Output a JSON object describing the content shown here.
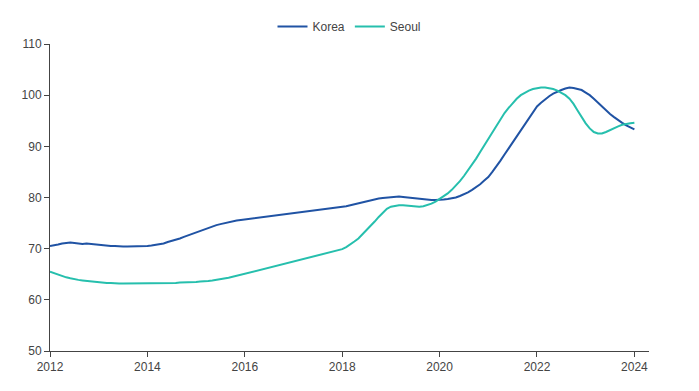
{
  "chart_data": {
    "type": "line",
    "x": [
      2012.0,
      2012.083,
      2012.167,
      2012.25,
      2012.333,
      2012.417,
      2012.5,
      2012.583,
      2012.667,
      2012.75,
      2012.833,
      2012.917,
      2013.0,
      2013.083,
      2013.167,
      2013.25,
      2013.333,
      2013.417,
      2013.5,
      2013.583,
      2013.667,
      2013.75,
      2013.833,
      2013.917,
      2014.0,
      2014.083,
      2014.167,
      2014.25,
      2014.333,
      2014.417,
      2014.5,
      2014.583,
      2014.667,
      2014.75,
      2014.833,
      2014.917,
      2015.0,
      2015.083,
      2015.167,
      2015.25,
      2015.333,
      2015.417,
      2015.5,
      2015.583,
      2015.667,
      2015.75,
      2015.833,
      2015.917,
      2016.0,
      2016.083,
      2016.167,
      2016.25,
      2016.333,
      2016.417,
      2016.5,
      2016.583,
      2016.667,
      2016.75,
      2016.833,
      2016.917,
      2017.0,
      2017.083,
      2017.167,
      2017.25,
      2017.333,
      2017.417,
      2017.5,
      2017.583,
      2017.667,
      2017.75,
      2017.833,
      2017.917,
      2018.0,
      2018.083,
      2018.167,
      2018.25,
      2018.333,
      2018.417,
      2018.5,
      2018.583,
      2018.667,
      2018.75,
      2018.833,
      2018.917,
      2019.0,
      2019.083,
      2019.167,
      2019.25,
      2019.333,
      2019.417,
      2019.5,
      2019.583,
      2019.667,
      2019.75,
      2019.833,
      2019.917,
      2020.0,
      2020.083,
      2020.167,
      2020.25,
      2020.333,
      2020.417,
      2020.5,
      2020.583,
      2020.667,
      2020.75,
      2020.833,
      2020.917,
      2021.0,
      2021.083,
      2021.167,
      2021.25,
      2021.333,
      2021.417,
      2021.5,
      2021.583,
      2021.667,
      2021.75,
      2021.833,
      2021.917,
      2022.0,
      2022.083,
      2022.167,
      2022.25,
      2022.333,
      2022.417,
      2022.5,
      2022.583,
      2022.667,
      2022.75,
      2022.833,
      2022.917,
      2023.0,
      2023.083,
      2023.167,
      2023.25,
      2023.333,
      2023.417,
      2023.5,
      2023.583,
      2023.667,
      2023.75,
      2023.833,
      2023.917,
      2024.0
    ],
    "series": [
      {
        "name": "Korea",
        "color": "#2053a4",
        "values": [
          70.5,
          70.6,
          70.8,
          71.0,
          71.1,
          71.2,
          71.1,
          71.0,
          70.9,
          71.0,
          70.9,
          70.8,
          70.7,
          70.6,
          70.6,
          70.5,
          70.5,
          70.4,
          70.4,
          70.4,
          70.4,
          70.5,
          70.5,
          70.5,
          70.5,
          70.6,
          70.7,
          70.8,
          71.0,
          71.3,
          71.5,
          71.8,
          72.0,
          72.3,
          72.6,
          72.9,
          73.2,
          73.5,
          73.8,
          74.1,
          74.4,
          74.6,
          74.8,
          75.0,
          75.2,
          75.4,
          75.5,
          75.6,
          75.7,
          75.8,
          75.9,
          76.0,
          76.1,
          76.2,
          76.3,
          76.4,
          76.5,
          76.6,
          76.7,
          76.8,
          76.9,
          77.0,
          77.1,
          77.2,
          77.3,
          77.4,
          77.5,
          77.6,
          77.7,
          77.8,
          77.9,
          78.0,
          78.1,
          78.3,
          78.5,
          78.7,
          78.9,
          79.1,
          79.3,
          79.5,
          79.7,
          79.8,
          79.9,
          80.0,
          80.1,
          80.2,
          80.2,
          80.1,
          80.0,
          79.9,
          79.8,
          79.7,
          79.6,
          79.5,
          79.5,
          79.5,
          79.5,
          79.6,
          79.7,
          79.8,
          80.0,
          80.3,
          80.6,
          81.0,
          81.5,
          82.0,
          82.6,
          83.3,
          84.0,
          85.0,
          86.0,
          87.2,
          88.4,
          89.6,
          90.8,
          92.0,
          93.2,
          94.4,
          95.5,
          96.6,
          97.8,
          98.5,
          99.2,
          99.8,
          100.3,
          100.7,
          101.0,
          101.3,
          101.5,
          101.4,
          101.2,
          101.0,
          100.5,
          100.0,
          99.3,
          98.5,
          97.8,
          97.0,
          96.3,
          95.7,
          95.1,
          94.6,
          94.1,
          93.7,
          93.3
        ]
      },
      {
        "name": "Seoul",
        "color": "#26bfad",
        "values": [
          65.5,
          65.2,
          64.9,
          64.7,
          64.4,
          64.2,
          64.0,
          63.9,
          63.8,
          63.7,
          63.6,
          63.5,
          63.5,
          63.4,
          63.3,
          63.3,
          63.2,
          63.2,
          63.2,
          63.2,
          63.2,
          63.2,
          63.2,
          63.2,
          63.2,
          63.2,
          63.2,
          63.2,
          63.3,
          63.3,
          63.3,
          63.3,
          63.4,
          63.4,
          63.4,
          63.5,
          63.5,
          63.6,
          63.6,
          63.7,
          63.8,
          63.9,
          64.0,
          64.1,
          64.3,
          64.5,
          64.7,
          64.9,
          65.1,
          65.3,
          65.5,
          65.7,
          65.9,
          66.1,
          66.3,
          66.5,
          66.7,
          66.9,
          67.1,
          67.3,
          67.5,
          67.7,
          67.9,
          68.1,
          68.3,
          68.5,
          68.7,
          68.9,
          69.1,
          69.3,
          69.5,
          69.7,
          69.9,
          70.3,
          70.8,
          71.4,
          72.0,
          72.8,
          73.6,
          74.4,
          75.3,
          76.2,
          77.1,
          77.8,
          78.2,
          78.4,
          78.5,
          78.5,
          78.4,
          78.3,
          78.2,
          78.2,
          78.3,
          78.5,
          78.8,
          79.2,
          79.7,
          80.2,
          80.8,
          81.5,
          82.3,
          83.2,
          84.2,
          85.3,
          86.4,
          87.6,
          88.9,
          90.2,
          91.5,
          92.8,
          94.1,
          95.3,
          96.5,
          97.5,
          98.5,
          99.3,
          100.0,
          100.5,
          100.9,
          101.2,
          101.4,
          101.5,
          101.5,
          101.4,
          101.2,
          100.9,
          100.5,
          100.0,
          99.3,
          98.3,
          97.0,
          95.7,
          94.5,
          93.5,
          92.8,
          92.5,
          92.5,
          92.8,
          93.2,
          93.6,
          93.9,
          94.2,
          94.4,
          94.5,
          94.6
        ]
      }
    ],
    "xlim": [
      2012,
      2024.3
    ],
    "xticks": [
      2012,
      2014,
      2016,
      2018,
      2020,
      2022,
      2024
    ],
    "ylim": [
      50,
      110
    ],
    "yticks": [
      50,
      60,
      70,
      80,
      90,
      100,
      110
    ],
    "y2lim": [
      50,
      110
    ],
    "y2ticks": [
      50,
      60,
      70,
      80,
      90,
      100,
      110
    ],
    "grid": false,
    "legend": "top"
  }
}
